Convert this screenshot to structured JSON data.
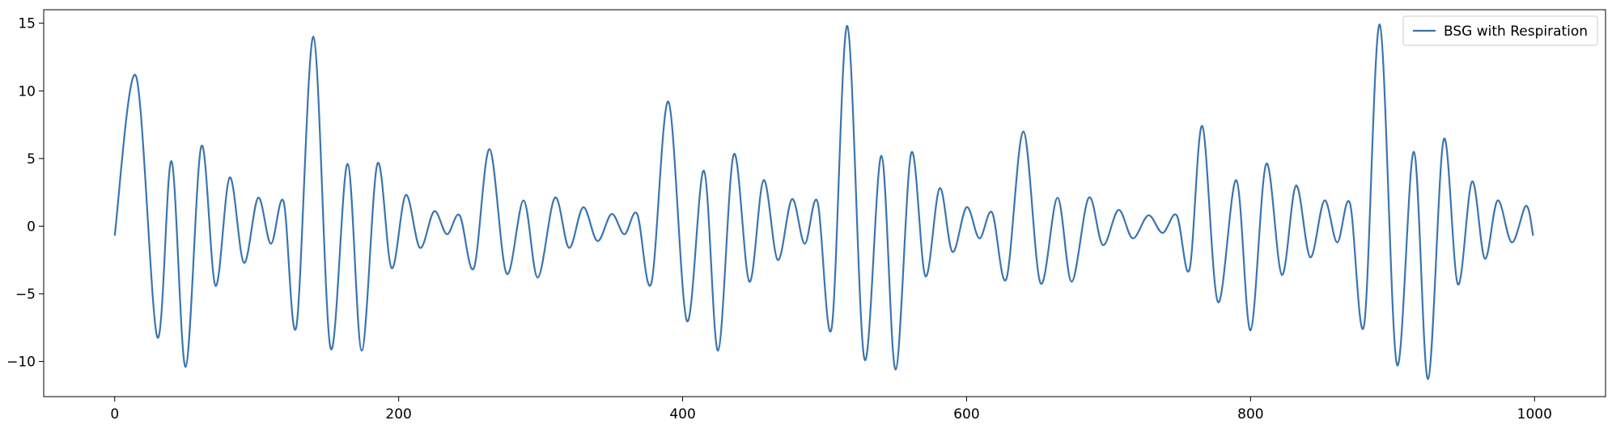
{
  "chart_data": {
    "type": "line",
    "title": "",
    "xlabel": "",
    "ylabel": "",
    "xlim": [
      -50,
      1050
    ],
    "ylim": [
      -12.6,
      16.0
    ],
    "xticks": [
      0,
      200,
      400,
      600,
      800,
      1000
    ],
    "yticks": [
      15,
      10,
      5,
      0,
      -5,
      -10
    ],
    "xtick_labels": [
      "0",
      "200",
      "400",
      "600",
      "800",
      "1000"
    ],
    "ytick_labels": [
      "15",
      "10",
      "5",
      "0",
      "−5",
      "−10"
    ],
    "grid": false,
    "legend": {
      "position": "top-right",
      "entries": [
        "BSG with Respiration"
      ]
    },
    "series": [
      {
        "name": "BSG with Respiration",
        "color": "#3a75b0",
        "x": [
          0,
          15,
          30,
          40,
          50,
          61,
          71,
          81,
          91,
          101,
          110,
          119,
          128,
          140,
          152,
          164,
          174,
          185,
          195,
          205,
          215,
          225,
          234,
          243,
          253,
          264,
          276,
          288,
          298,
          310,
          320,
          330,
          340,
          350,
          359,
          368,
          378,
          390,
          403,
          415,
          425,
          436,
          447,
          457,
          467,
          477,
          486,
          495,
          505,
          516,
          528,
          540,
          550,
          561,
          571,
          581,
          590,
          600,
          609,
          618,
          628,
          640,
          652,
          664,
          674,
          686,
          696,
          707,
          717,
          728,
          738,
          748,
          757,
          766,
          777,
          790,
          800,
          811,
          822,
          832,
          842,
          852,
          861,
          870,
          880,
          891,
          903,
          915,
          925,
          936,
          946,
          956,
          965,
          974,
          984,
          994,
          999
        ],
        "y": [
          -0.7,
          11.1,
          -8.2,
          4.8,
          -10.4,
          5.9,
          -4.4,
          3.6,
          -2.7,
          2.1,
          -1.3,
          1.8,
          -7.4,
          14.0,
          -9.0,
          4.6,
          -9.2,
          4.6,
          -3.1,
          2.3,
          -1.6,
          1.1,
          -0.6,
          0.8,
          -3.1,
          5.7,
          -3.5,
          1.9,
          -3.8,
          2.1,
          -1.6,
          1.4,
          -1.1,
          0.9,
          -0.6,
          0.9,
          -4.2,
          9.2,
          -7.0,
          4.1,
          -9.2,
          5.3,
          -4.1,
          3.4,
          -2.5,
          2.0,
          -1.3,
          1.8,
          -7.5,
          14.8,
          -9.8,
          5.2,
          -10.6,
          5.4,
          -3.7,
          2.8,
          -1.9,
          1.4,
          -0.9,
          1.0,
          -3.9,
          7.0,
          -4.2,
          2.1,
          -4.1,
          2.1,
          -1.4,
          1.2,
          -0.9,
          0.8,
          -0.5,
          0.8,
          -3.2,
          7.4,
          -5.6,
          3.4,
          -7.7,
          4.6,
          -3.6,
          3.0,
          -2.3,
          1.9,
          -1.2,
          1.7,
          -7.3,
          14.9,
          -10.2,
          5.5,
          -11.3,
          6.4,
          -4.3,
          3.3,
          -2.4,
          1.9,
          -1.2,
          1.5,
          -0.7
        ]
      }
    ]
  }
}
